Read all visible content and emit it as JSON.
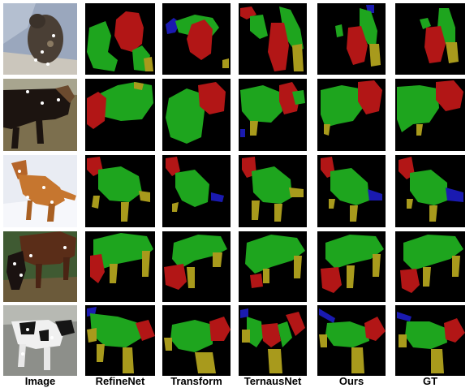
{
  "columns": [
    {
      "key": "image",
      "label": "Image"
    },
    {
      "key": "refinenet",
      "label": "RefineNet"
    },
    {
      "key": "transform",
      "label": "Transform"
    },
    {
      "key": "ternausnet",
      "label": "TernausNet"
    },
    {
      "key": "ours",
      "label": "Ours"
    },
    {
      "key": "gt",
      "label": "GT"
    }
  ],
  "rows": [
    {
      "subject": "cat-on-blanket"
    },
    {
      "subject": "horse-dark"
    },
    {
      "subject": "dog-in-snow"
    },
    {
      "subject": "horse-brown"
    },
    {
      "subject": "dog-black-white"
    }
  ],
  "colors": {
    "background": "#000000",
    "head": "#b21616",
    "body": "#1ea51e",
    "legs": "#a89a1c",
    "tail": "#1a1ab0"
  }
}
